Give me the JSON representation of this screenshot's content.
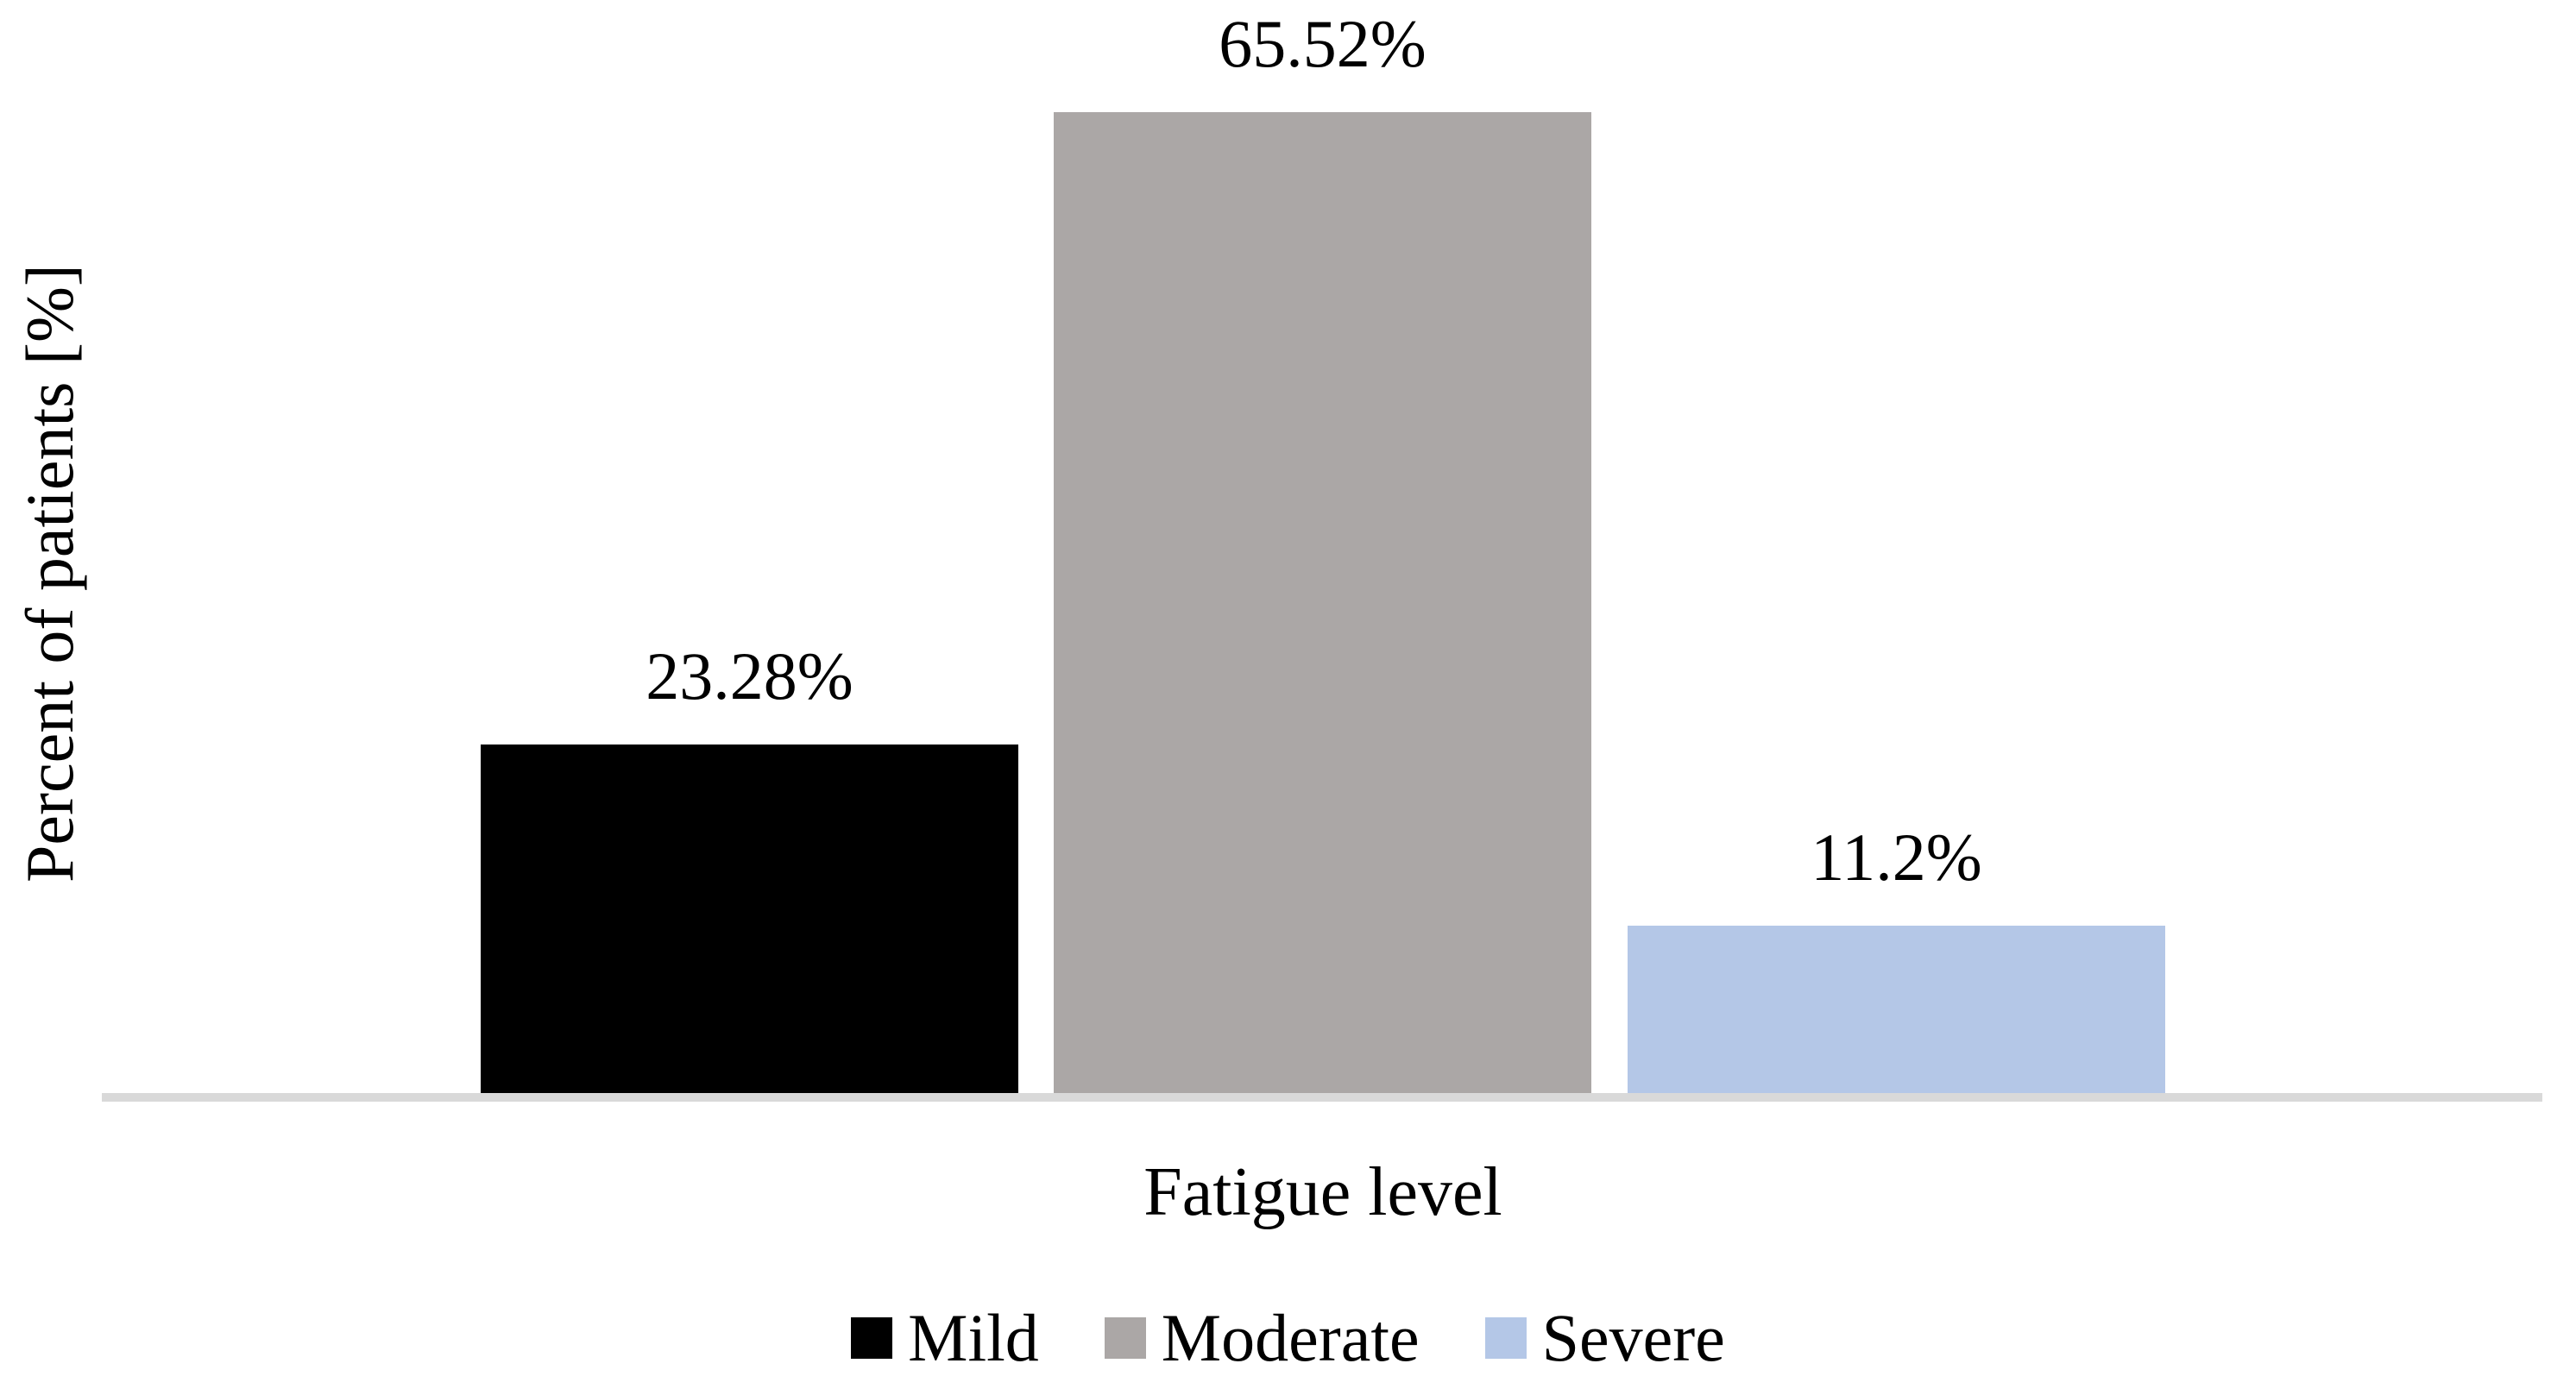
{
  "chart_data": {
    "type": "bar",
    "title": "",
    "categories": [
      "Mild",
      "Moderate",
      "Severe"
    ],
    "values": [
      23.28,
      65.52,
      11.2
    ],
    "data_labels": [
      "23.28%",
      "65.52%",
      "11.2%"
    ],
    "colors": [
      "#000000",
      "#aba7a6",
      "#b4c7e7"
    ],
    "xlabel": "Fatigue level",
    "ylabel": "Percent of patients [%]",
    "ylim": [
      0,
      70
    ],
    "grid": false,
    "y_axis_ticks": "none",
    "axis_line_color": "#d9d9d9",
    "legend_position": "bottom",
    "legend_entries": [
      {
        "label": "Mild",
        "color": "#000000"
      },
      {
        "label": "Moderate",
        "color": "#aba7a6"
      },
      {
        "label": "Severe",
        "color": "#b4c7e7"
      }
    ]
  }
}
